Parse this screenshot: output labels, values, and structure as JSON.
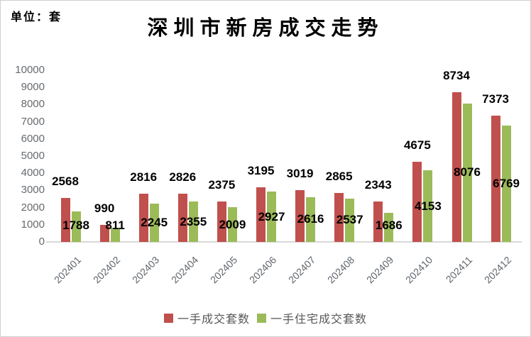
{
  "chart_data": {
    "type": "bar",
    "title": "深圳市新房成交走势",
    "unit_label": "单位：套",
    "categories": [
      "202401",
      "202402",
      "202403",
      "202404",
      "202405",
      "202406",
      "202407",
      "202408",
      "202409",
      "202410",
      "202411",
      "202412"
    ],
    "series": [
      {
        "name": "一手成交套数",
        "color": "#C0504D",
        "values": [
          2568,
          990,
          2816,
          2826,
          2375,
          3195,
          3019,
          2865,
          2343,
          4675,
          8734,
          7373
        ]
      },
      {
        "name": "一手住宅成交套数",
        "color": "#9BBB59",
        "values": [
          1788,
          811,
          2245,
          2355,
          2009,
          2927,
          2616,
          2537,
          1686,
          4153,
          8076,
          6769
        ]
      }
    ],
    "ylim": [
      0,
      10000
    ],
    "yticks": [
      0,
      1000,
      2000,
      3000,
      4000,
      5000,
      6000,
      7000,
      8000,
      9000,
      10000
    ],
    "grid": false,
    "legend_position": "bottom",
    "data_labels": true,
    "axis_line_color": "#D9D9D9"
  }
}
